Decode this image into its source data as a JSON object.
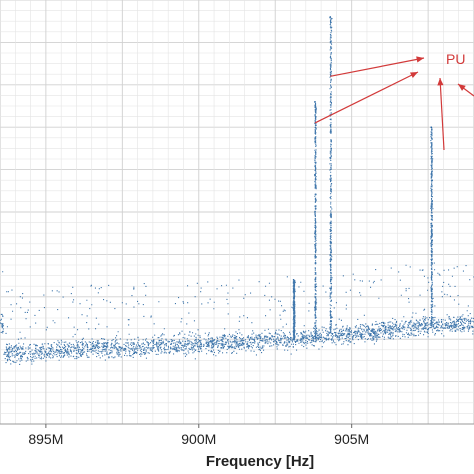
{
  "chart_data": {
    "type": "scatter",
    "xlabel": "Frequency [Hz]",
    "ylabel": "",
    "title": "",
    "xlim": [
      893500000,
      909000000
    ],
    "ylim": [
      0,
      100
    ],
    "x_ticks": [
      {
        "value": 895000000,
        "label": "895M"
      },
      {
        "value": 900000000,
        "label": "900M"
      },
      {
        "value": 905000000,
        "label": "905M"
      }
    ],
    "grid": true,
    "colors": {
      "points": "#1f5f9e",
      "annotation": "#d23a3a",
      "grid": "#e4e4e4"
    },
    "series": [
      {
        "noise_floor": [
          {
            "x": 893600000,
            "y": 17
          },
          {
            "x": 894500000,
            "y": 17
          },
          {
            "x": 895500000,
            "y": 17.5
          },
          {
            "x": 896500000,
            "y": 18
          },
          {
            "x": 897500000,
            "y": 18
          },
          {
            "x": 898500000,
            "y": 18.5
          },
          {
            "x": 899500000,
            "y": 19
          },
          {
            "x": 900500000,
            "y": 19
          },
          {
            "x": 901500000,
            "y": 19.5
          },
          {
            "x": 902500000,
            "y": 20
          },
          {
            "x": 903200000,
            "y": 20
          },
          {
            "x": 904000000,
            "y": 21
          },
          {
            "x": 905000000,
            "y": 21.5
          },
          {
            "x": 906000000,
            "y": 22
          },
          {
            "x": 907000000,
            "y": 23
          },
          {
            "x": 908000000,
            "y": 23.5
          },
          {
            "x": 908900000,
            "y": 24
          }
        ],
        "peaks": [
          {
            "x": 903100000,
            "y": 34
          },
          {
            "x": 903800000,
            "y": 76
          },
          {
            "x": 904300000,
            "y": 96
          },
          {
            "x": 907600000,
            "y": 70
          }
        ]
      }
    ],
    "annotations": [
      {
        "text": "PU"
      }
    ]
  }
}
